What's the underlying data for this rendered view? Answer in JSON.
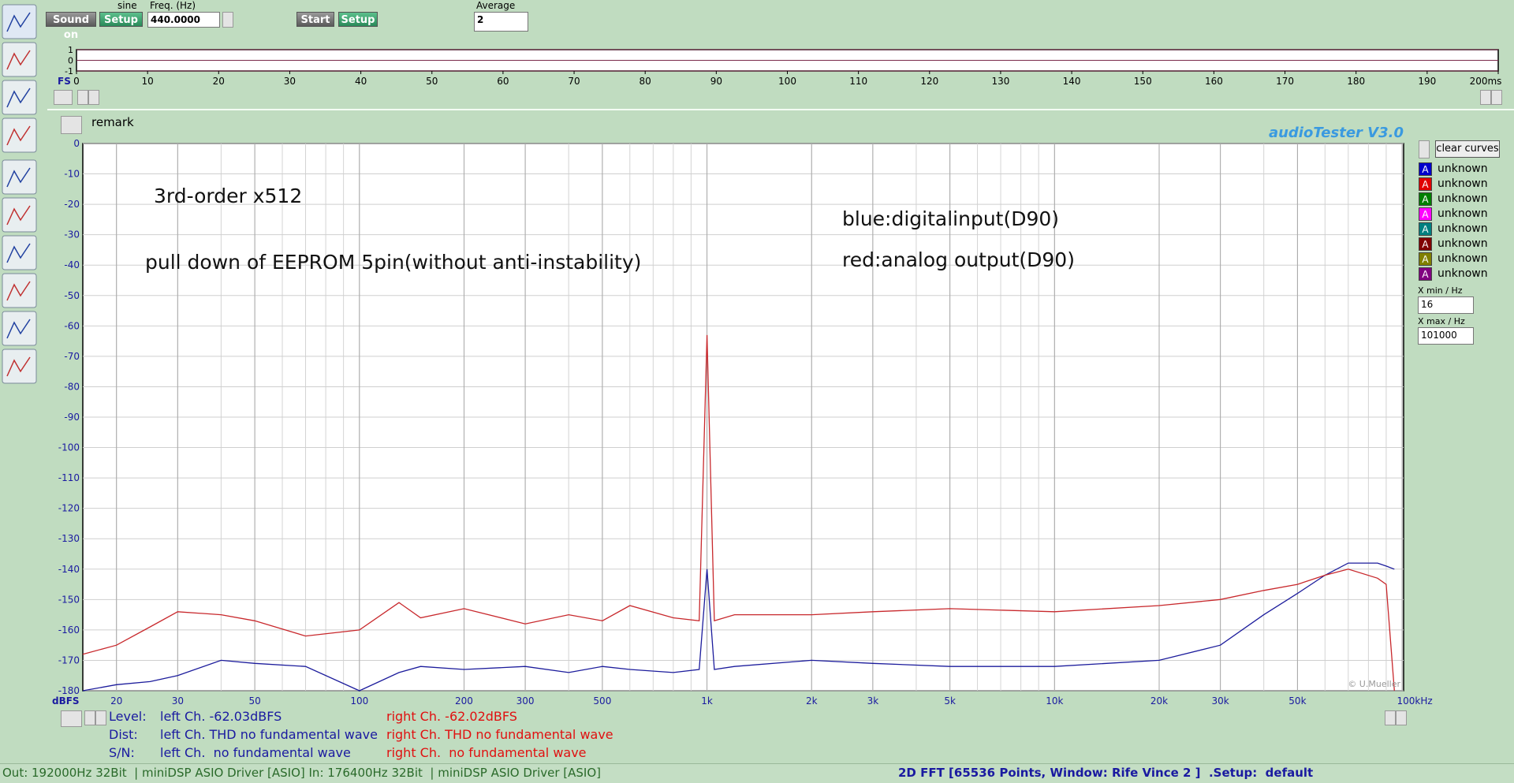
{
  "toolbar": {
    "sound_button": "Sound on",
    "setup_button": "Setup",
    "signal": "sine",
    "freq_label": "Freq. (Hz)",
    "freq_value": "440.0000",
    "start_button": "Start",
    "setup_button_2": "Setup",
    "average_label": "Average",
    "average_value": "2"
  },
  "time_chart": {
    "type": "line",
    "scale_label": "FS",
    "ylim": [
      -1,
      1
    ],
    "yticks": [
      1,
      0,
      -1
    ],
    "xlim": [
      0,
      200
    ],
    "xticks": [
      0,
      10,
      20,
      30,
      40,
      50,
      60,
      70,
      80,
      90,
      100,
      110,
      120,
      130,
      140,
      150,
      160,
      170,
      180,
      190,
      {
        "value": 200,
        "label": "200ms"
      }
    ]
  },
  "remark_label": "remark",
  "chart_data": {
    "type": "line",
    "xscale": "log",
    "grid": true,
    "watermark": "audioTester  V3.0",
    "credit": "© U.Mueller",
    "y_label": "dBFS",
    "annotations": [
      "3rd-order x512",
      "pull down of EEPROM 5pin(without anti-instability)",
      "blue:digitalinput(D90)",
      "red:analog output(D90)"
    ],
    "xlim": [
      16,
      101000
    ],
    "ylim": [
      -180,
      0
    ],
    "xticks": [
      20,
      30,
      50,
      100,
      200,
      300,
      500,
      {
        "value": 1000,
        "label": "1k"
      },
      {
        "value": 2000,
        "label": "2k"
      },
      {
        "value": 3000,
        "label": "3k"
      },
      {
        "value": 5000,
        "label": "5k"
      },
      {
        "value": 10000,
        "label": "10k"
      },
      {
        "value": 20000,
        "label": "20k"
      },
      {
        "value": 30000,
        "label": "30k"
      },
      {
        "value": 50000,
        "label": "50k"
      },
      {
        "value": 100000,
        "label": "100kHz"
      }
    ],
    "yticks": [
      0,
      -10,
      -20,
      -30,
      -40,
      -50,
      -60,
      -70,
      -80,
      -90,
      -100,
      -110,
      -120,
      -130,
      -140,
      -150,
      -160,
      -170,
      -180
    ],
    "x": [
      16,
      20,
      25,
      30,
      40,
      50,
      70,
      100,
      130,
      150,
      200,
      300,
      400,
      500,
      600,
      800,
      950,
      1000,
      1050,
      1200,
      2000,
      3000,
      5000,
      10000,
      20000,
      30000,
      40000,
      50000,
      60000,
      70000,
      85000,
      90000,
      95000
    ],
    "series": [
      {
        "name": "blue",
        "color": "#1c1c9c",
        "values": [
          -180,
          -178,
          -177,
          -175,
          -170,
          -171,
          -172,
          -180,
          -174,
          -172,
          -173,
          -172,
          -174,
          -172,
          -173,
          -174,
          -173,
          -140,
          -173,
          -172,
          -170,
          -171,
          -172,
          -172,
          -170,
          -165,
          -155,
          -148,
          -142,
          -138,
          -138,
          -139,
          -140
        ]
      },
      {
        "name": "red",
        "color": "#c8282c",
        "values": [
          -168,
          -165,
          -159,
          -154,
          -155,
          -157,
          -162,
          -160,
          -151,
          -156,
          -153,
          -158,
          -155,
          -157,
          -152,
          -156,
          -157,
          -63,
          -157,
          -155,
          -155,
          -154,
          -153,
          -154,
          -152,
          -150,
          -147,
          -145,
          -142,
          -140,
          -143,
          -145,
          -180
        ]
      }
    ]
  },
  "legend_panel": {
    "clear_button": "clear curves",
    "curves": [
      {
        "letter": "A",
        "name": "unknown",
        "color": "#0000cc"
      },
      {
        "letter": "A",
        "name": "unknown",
        "color": "#e00000"
      },
      {
        "letter": "A",
        "name": "unknown",
        "color": "#008000"
      },
      {
        "letter": "A",
        "name": "unknown",
        "color": "#ff00ff"
      },
      {
        "letter": "A",
        "name": "unknown",
        "color": "#008080"
      },
      {
        "letter": "A",
        "name": "unknown",
        "color": "#800000"
      },
      {
        "letter": "A",
        "name": "unknown",
        "color": "#808000"
      },
      {
        "letter": "A",
        "name": "unknown",
        "color": "#800080"
      }
    ],
    "xmin_label": "X min / Hz",
    "xmin_value": "16",
    "xmax_label": "X max / Hz",
    "xmax_value": "101000"
  },
  "results": [
    {
      "label": "Level:",
      "left": "left Ch. -62.03dBFS",
      "right": "right Ch. -62.02dBFS"
    },
    {
      "label": "Dist:",
      "left": "left Ch. THD no fundamental wave",
      "right": "right Ch. THD no fundamental wave"
    },
    {
      "label": "S/N:",
      "left": "left Ch.  no fundamental wave",
      "right": "right Ch.  no fundamental wave"
    }
  ],
  "status_bar": {
    "left": "Out: 192000Hz 32Bit  | miniDSP ASIO Driver [ASIO] In: 176400Hz 32Bit  | miniDSP ASIO Driver [ASIO]",
    "right": "2D FFT [65536 Points, Window: Rife Vince 2 ]  .Setup:  default"
  }
}
